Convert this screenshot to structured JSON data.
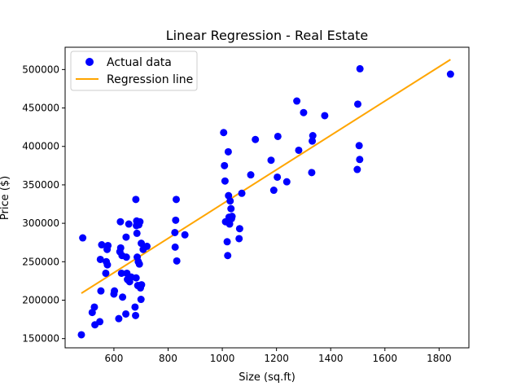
{
  "chart_data": {
    "type": "scatter",
    "title": "Linear Regression - Real Estate",
    "xlabel": "Size (sq.ft)",
    "ylabel": "Price ($)",
    "xlim": [
      420,
      1910
    ],
    "ylim": [
      138000,
      529000
    ],
    "xticks": [
      400,
      600,
      800,
      1000,
      1200,
      1400,
      1600,
      1800
    ],
    "xtick_labels": [
      "400",
      "600",
      "800",
      "1000",
      "1200",
      "1400",
      "1600",
      "1800"
    ],
    "yticks": [
      150000,
      200000,
      250000,
      300000,
      350000,
      400000,
      450000,
      500000
    ],
    "ytick_labels": [
      "150000",
      "200000",
      "250000",
      "300000",
      "350000",
      "400000",
      "450000",
      "500000"
    ],
    "grid": false,
    "legend_position": "top-left",
    "series": [
      {
        "name": "Actual data",
        "kind": "scatter",
        "color": "#0000ff",
        "points": [
          [
            480,
            155000
          ],
          [
            485,
            281000
          ],
          [
            520,
            184000
          ],
          [
            528,
            191000
          ],
          [
            530,
            168000
          ],
          [
            548,
            172000
          ],
          [
            550,
            253000
          ],
          [
            552,
            212000
          ],
          [
            555,
            272000
          ],
          [
            570,
            235000
          ],
          [
            572,
            250000
          ],
          [
            575,
            266000
          ],
          [
            576,
            246000
          ],
          [
            578,
            271000
          ],
          [
            600,
            208000
          ],
          [
            602,
            212000
          ],
          [
            618,
            176000
          ],
          [
            622,
            263000
          ],
          [
            624,
            302000
          ],
          [
            625,
            268000
          ],
          [
            628,
            235000
          ],
          [
            630,
            258000
          ],
          [
            632,
            204000
          ],
          [
            644,
            182000
          ],
          [
            645,
            282000
          ],
          [
            646,
            256000
          ],
          [
            648,
            235000
          ],
          [
            650,
            227000
          ],
          [
            655,
            299000
          ],
          [
            658,
            224000
          ],
          [
            664,
            230000
          ],
          [
            678,
            191000
          ],
          [
            680,
            180000
          ],
          [
            681,
            331000
          ],
          [
            682,
            229000
          ],
          [
            683,
            297000
          ],
          [
            684,
            303000
          ],
          [
            685,
            287000
          ],
          [
            686,
            256000
          ],
          [
            688,
            219000
          ],
          [
            690,
            250000
          ],
          [
            692,
            298000
          ],
          [
            694,
            247000
          ],
          [
            696,
            302000
          ],
          [
            698,
            216000
          ],
          [
            700,
            201000
          ],
          [
            701,
            274000
          ],
          [
            702,
            220000
          ],
          [
            708,
            266000
          ],
          [
            722,
            270000
          ],
          [
            825,
            288000
          ],
          [
            826,
            269000
          ],
          [
            828,
            304000
          ],
          [
            830,
            331000
          ],
          [
            832,
            251000
          ],
          [
            862,
            285000
          ],
          [
            1005,
            418000
          ],
          [
            1008,
            375000
          ],
          [
            1010,
            355000
          ],
          [
            1012,
            302000
          ],
          [
            1018,
            276000
          ],
          [
            1020,
            258000
          ],
          [
            1022,
            393000
          ],
          [
            1023,
            336000
          ],
          [
            1025,
            308000
          ],
          [
            1027,
            299000
          ],
          [
            1029,
            329000
          ],
          [
            1032,
            319000
          ],
          [
            1034,
            306000
          ],
          [
            1036,
            309000
          ],
          [
            1062,
            280000
          ],
          [
            1064,
            293000
          ],
          [
            1072,
            339000
          ],
          [
            1105,
            363000
          ],
          [
            1122,
            409000
          ],
          [
            1180,
            382000
          ],
          [
            1190,
            343000
          ],
          [
            1203,
            360000
          ],
          [
            1205,
            413000
          ],
          [
            1238,
            354000
          ],
          [
            1275,
            459000
          ],
          [
            1282,
            395000
          ],
          [
            1300,
            444000
          ],
          [
            1330,
            366000
          ],
          [
            1332,
            407000
          ],
          [
            1334,
            414000
          ],
          [
            1378,
            440000
          ],
          [
            1498,
            370000
          ],
          [
            1500,
            455000
          ],
          [
            1505,
            401000
          ],
          [
            1507,
            383000
          ],
          [
            1508,
            501000
          ],
          [
            1842,
            494000
          ]
        ]
      },
      {
        "name": "Regression line",
        "kind": "line",
        "color": "#ffa500",
        "points": [
          [
            480,
            209000
          ],
          [
            1842,
            513000
          ]
        ]
      }
    ]
  }
}
